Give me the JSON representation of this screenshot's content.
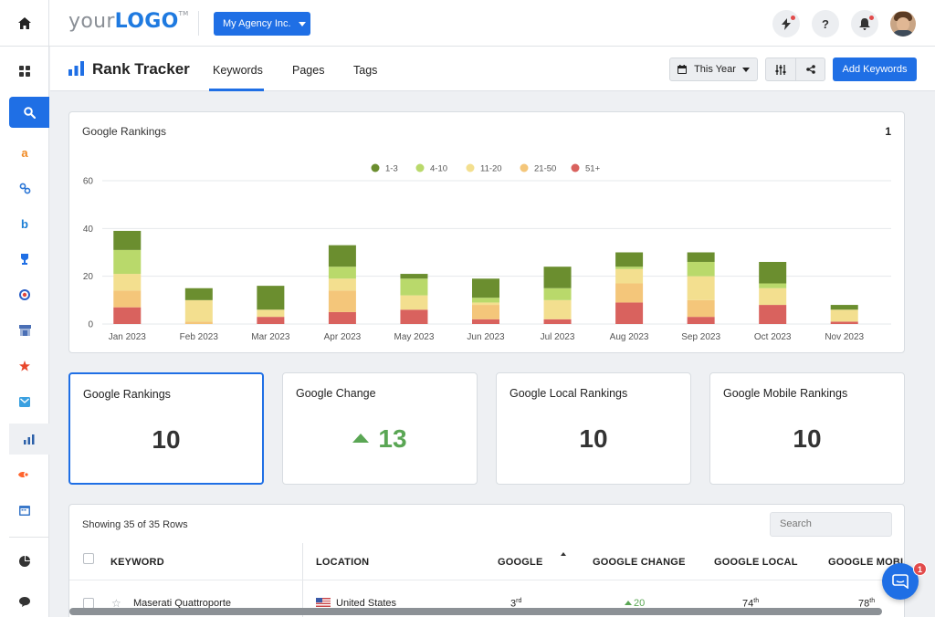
{
  "header": {
    "logo_text_a": "your",
    "logo_text_b": "LOGO",
    "logo_tm": "TM",
    "agency_label": "My Agency Inc."
  },
  "subheader": {
    "title": "Rank Tracker",
    "tabs": [
      {
        "label": "Keywords",
        "active": true
      },
      {
        "label": "Pages",
        "active": false
      },
      {
        "label": "Tags",
        "active": false
      }
    ],
    "date_range_label": "This Year",
    "add_keywords_label": "Add Keywords"
  },
  "sidebar": {
    "items": [
      {
        "icon": "dashboard-icon"
      },
      {
        "icon": "search-icon",
        "active": true
      },
      {
        "icon": "amazon-icon"
      },
      {
        "icon": "link-icon"
      },
      {
        "icon": "bing-icon"
      },
      {
        "icon": "trophy-icon"
      },
      {
        "icon": "target-icon"
      },
      {
        "icon": "shop-icon"
      },
      {
        "icon": "star-icon"
      },
      {
        "icon": "mail-icon"
      },
      {
        "icon": "bar-chart-icon"
      },
      {
        "icon": "semrush-icon"
      },
      {
        "icon": "calendar-icon"
      },
      {
        "icon": "pie-chart-icon"
      },
      {
        "icon": "chat-icon"
      }
    ]
  },
  "colors": {
    "accent": "#1f6fe5",
    "series": [
      "#6b8e2f",
      "#b9d96b",
      "#f3df8f",
      "#f4c67a",
      "#d9625e"
    ],
    "positive": "#5aa654"
  },
  "chart_card": {
    "title": "Google Rankings",
    "count": "1"
  },
  "chart_data": {
    "type": "bar",
    "stacked": true,
    "categories": [
      "Jan 2023",
      "Feb 2023",
      "Mar 2023",
      "Apr 2023",
      "May 2023",
      "Jun 2023",
      "Jul 2023",
      "Aug 2023",
      "Sep 2023",
      "Oct 2023",
      "Nov 2023"
    ],
    "series": [
      {
        "name": "51+",
        "values": [
          7,
          0,
          3,
          5,
          6,
          2,
          2,
          9,
          3,
          8,
          1
        ]
      },
      {
        "name": "21-50",
        "values": [
          7,
          1,
          0,
          9,
          0,
          6,
          0,
          8,
          7,
          0,
          0
        ]
      },
      {
        "name": "11-20",
        "values": [
          7,
          9,
          3,
          5,
          6,
          1,
          8,
          6,
          10,
          7,
          5
        ]
      },
      {
        "name": "4-10",
        "values": [
          10,
          0,
          0,
          5,
          7,
          2,
          5,
          1,
          6,
          2,
          0
        ]
      },
      {
        "name": "1-3",
        "values": [
          8,
          5,
          10,
          9,
          2,
          8,
          9,
          6,
          4,
          9,
          2
        ]
      }
    ],
    "legend_order": [
      "1-3",
      "4-10",
      "11-20",
      "21-50",
      "51+"
    ],
    "ylim": [
      0,
      60
    ],
    "yticks": [
      0,
      20,
      40,
      60
    ],
    "grid": true,
    "legend_position": "top-center"
  },
  "stats": [
    {
      "label": "Google Rankings",
      "value": "10",
      "selected": true
    },
    {
      "label": "Google Change",
      "value": "13",
      "trend": "up"
    },
    {
      "label": "Google Local Rankings",
      "value": "10"
    },
    {
      "label": "Google Mobile Rankings",
      "value": "10"
    }
  ],
  "table": {
    "showing": "Showing 35 of 35 Rows",
    "search_placeholder": "Search",
    "columns": [
      "KEYWORD",
      "LOCATION",
      "GOOGLE",
      "GOOGLE CHANGE",
      "GOOGLE LOCAL",
      "GOOGLE MOBILI"
    ],
    "rows": [
      {
        "keyword": "Maserati Quattroporte",
        "location": "United States",
        "google": "3",
        "google_sup": "rd",
        "google_change": "20",
        "google_local": "74",
        "google_local_sup": "th",
        "google_mobile": "78",
        "google_mobile_sup": "th"
      }
    ]
  },
  "chat": {
    "badge": "1"
  }
}
